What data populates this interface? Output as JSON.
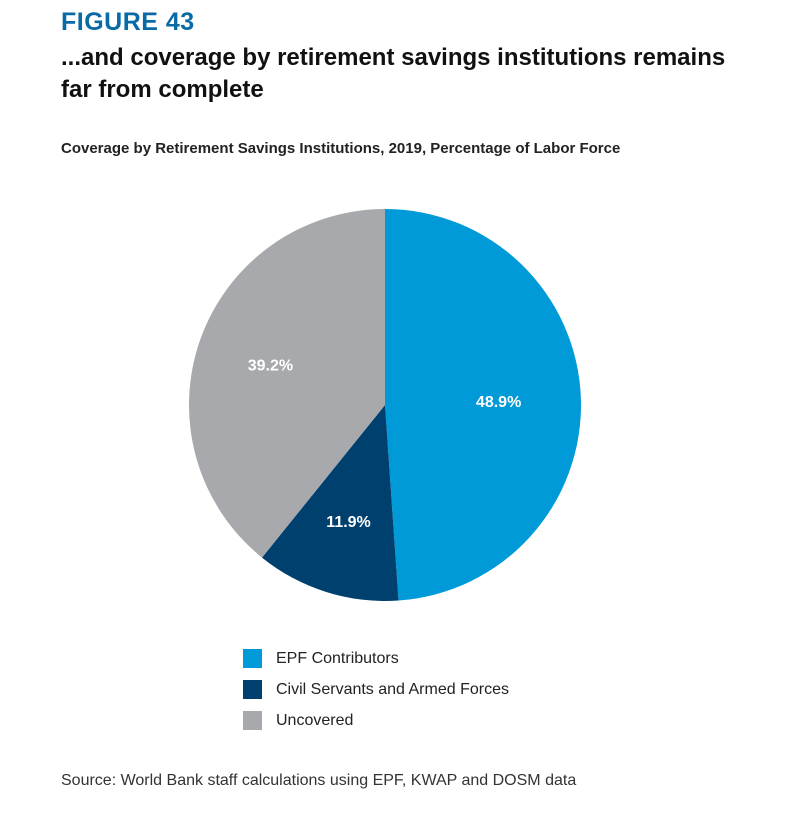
{
  "figure_label": "FIGURE 43",
  "headline": "...and coverage by retirement savings institutions remains far from complete",
  "source": "Source: World Bank staff calculations using EPF, KWAP and DOSM data",
  "chart_data": {
    "type": "pie",
    "title": "Coverage by Retirement Savings Institutions, 2019, Percentage of Labor Force",
    "start_angle": "12 o'clock",
    "direction": "clockwise",
    "legend_position": "bottom",
    "slices": [
      {
        "label": "EPF Contributors",
        "value": 48.9,
        "display": "48.9%",
        "color": "#009ad9"
      },
      {
        "label": "Civil Servants and Armed Forces",
        "value": 11.9,
        "display": "11.9%",
        "color": "#00406f"
      },
      {
        "label": "Uncovered",
        "value": 39.2,
        "display": "39.2%",
        "color": "#a7a9ac"
      }
    ]
  }
}
